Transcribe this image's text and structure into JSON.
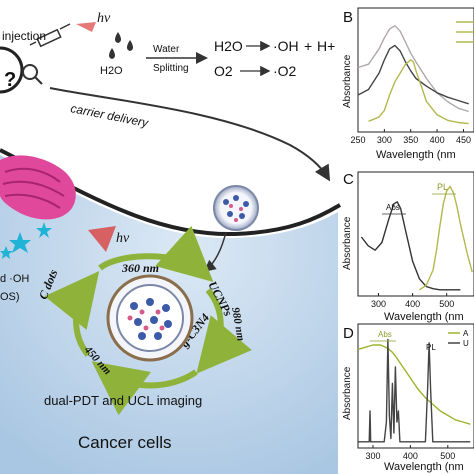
{
  "schematic": {
    "injection_label": "injection",
    "hv_top": "hv",
    "hv_mid": "hv",
    "water_label": "Water",
    "splitting_label": "Splitting",
    "h2o_small": "H2O",
    "eq1_lhs": "H2O",
    "eq1_rhs1": "·OH",
    "eq1_plus": "+",
    "eq1_rhs2": "H+",
    "eq2_lhs": "O2",
    "eq2_rhs": "·O2",
    "carrier_delivery": "carrier delivery",
    "nm360": "360 nm",
    "ucnps": "UCNPs",
    "cdots": "C dots",
    "nm450": "450 nm",
    "nm980": "980 nm",
    "gc3n4": "g-C3N4",
    "ros_text1": "d ·OH",
    "ros_text2": "OS)",
    "dual_pdt": "dual-PDT  and UCL imaging",
    "cancer_cells": "Cancer cells"
  },
  "colors": {
    "accent_green": "#9ab52c",
    "cell_blue": "#b9d3ea",
    "organelle_pink": "#e0489c",
    "ros_cyan": "#1fb3d6",
    "hv_red": "#d8403f",
    "curve_dark": "#333333",
    "curve_olive": "#b3b84d"
  },
  "chart_data": [
    {
      "panel": "B",
      "type": "line",
      "xlabel": "Wavelength (nm",
      "ylabel": "Absorbance",
      "xticks": [
        250,
        300,
        350,
        400,
        450
      ],
      "xlim": [
        250,
        470
      ],
      "grid": false,
      "series": [
        {
          "color": "#b0a8a8",
          "x": [
            250,
            270,
            290,
            300,
            310,
            320,
            330,
            340,
            350,
            360,
            380,
            400,
            420,
            440,
            460
          ],
          "y": [
            0.55,
            0.58,
            0.72,
            0.82,
            0.9,
            0.93,
            0.88,
            0.78,
            0.68,
            0.6,
            0.45,
            0.32,
            0.24,
            0.18,
            0.15
          ]
        },
        {
          "color": "#444444",
          "x": [
            250,
            270,
            290,
            300,
            310,
            320,
            330,
            340,
            350,
            360,
            380,
            400,
            420,
            440,
            460
          ],
          "y": [
            0.3,
            0.35,
            0.5,
            0.62,
            0.72,
            0.75,
            0.7,
            0.6,
            0.52,
            0.45,
            0.38,
            0.32,
            0.28,
            0.25,
            0.22
          ]
        },
        {
          "color": "#b3b84d",
          "x": [
            270,
            280,
            290,
            300,
            310,
            320,
            330,
            340,
            350,
            355,
            360,
            370,
            380,
            400,
            420,
            440,
            460
          ],
          "y": [
            0.06,
            0.08,
            0.1,
            0.16,
            0.3,
            0.42,
            0.5,
            0.58,
            0.62,
            0.6,
            0.52,
            0.38,
            0.24,
            0.12,
            0.07,
            0.05,
            0.04
          ]
        }
      ]
    },
    {
      "panel": "C",
      "type": "line",
      "xlabel": "Wavelength (nm",
      "ylabel": "Absorbance",
      "xticks": [
        300,
        400,
        500
      ],
      "xlim": [
        240,
        580
      ],
      "annotations": [
        "Abs",
        "PL"
      ],
      "grid": false,
      "series": [
        {
          "name": "Abs",
          "color": "#333333",
          "x": [
            250,
            270,
            290,
            310,
            330,
            345,
            355,
            365,
            380,
            400,
            420,
            440,
            460,
            480,
            500,
            520,
            540
          ],
          "y": [
            0.5,
            0.42,
            0.38,
            0.45,
            0.66,
            0.8,
            0.82,
            0.76,
            0.55,
            0.28,
            0.12,
            0.05,
            0.03,
            0.02,
            0.02,
            0.02,
            0.02
          ]
        },
        {
          "name": "PL",
          "color": "#b3b84d",
          "x": [
            420,
            440,
            460,
            470,
            480,
            490,
            500,
            510,
            520,
            530,
            540,
            560,
            575
          ],
          "y": [
            0.02,
            0.06,
            0.2,
            0.38,
            0.6,
            0.8,
            0.92,
            0.96,
            0.9,
            0.78,
            0.62,
            0.35,
            0.18
          ]
        }
      ]
    },
    {
      "panel": "D",
      "type": "line",
      "xlabel": "Wavelength (nm",
      "ylabel": "Absorbance",
      "xticks": [
        300,
        400,
        500
      ],
      "xlim": [
        260,
        570
      ],
      "annotations": [
        "Abs",
        "PL"
      ],
      "legend": "top-right",
      "grid": false,
      "series": [
        {
          "name": "Abs",
          "color": "#9ab52c",
          "x": [
            260,
            280,
            300,
            320,
            340,
            350,
            360,
            380,
            400,
            420,
            440,
            460,
            480,
            500,
            520,
            540,
            560
          ],
          "y": [
            0.86,
            0.88,
            0.9,
            0.9,
            0.87,
            0.84,
            0.8,
            0.7,
            0.6,
            0.5,
            0.42,
            0.36,
            0.3,
            0.26,
            0.22,
            0.2,
            0.18
          ]
        },
        {
          "name": "PL",
          "color": "#444444",
          "x": [
            260,
            280,
            290,
            292,
            294,
            300,
            330,
            336,
            340,
            344,
            348,
            352,
            356,
            360,
            364,
            368,
            372,
            380,
            400,
            440,
            446,
            450,
            454,
            460,
            500,
            540,
            560
          ],
          "y": [
            0.02,
            0.02,
            0.02,
            0.3,
            0.02,
            0.02,
            0.02,
            0.2,
            0.95,
            0.25,
            0.05,
            0.55,
            0.1,
            0.7,
            0.2,
            0.3,
            0.02,
            0.02,
            0.02,
            0.02,
            0.5,
            0.92,
            0.5,
            0.02,
            0.02,
            0.02,
            0.02
          ]
        }
      ]
    }
  ],
  "panels": {
    "B": {
      "letter": "B",
      "ylabel": "Absorbance",
      "xlabel": "Wavelength (nm"
    },
    "C": {
      "letter": "C",
      "ylabel": "Absorbance",
      "xlabel": "Wavelength (nm",
      "abs_tag": "Abs",
      "pl_tag": "PL"
    },
    "D": {
      "letter": "D",
      "ylabel": "Absorbance",
      "xlabel": "Wavelength (nm",
      "abs_tag": "Abs",
      "pl_tag": "PL",
      "legend_1": "A",
      "legend_2": "U"
    }
  }
}
